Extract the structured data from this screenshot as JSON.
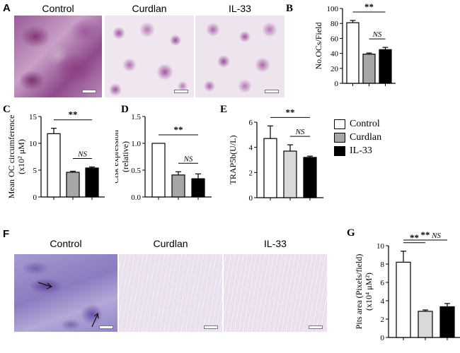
{
  "panels": {
    "A": {
      "letter": "A",
      "images": [
        "Control",
        "Curdlan",
        "IL-33"
      ]
    },
    "F": {
      "letter": "F",
      "images": [
        "Control",
        "Curdlan",
        "IL-33"
      ]
    }
  },
  "legend": {
    "items": [
      {
        "label": "Control",
        "color": "#ffffff"
      },
      {
        "label": "Curdlan",
        "color": "#a6a6a6"
      },
      {
        "label": "IL-33",
        "color": "#000000"
      }
    ]
  },
  "chart_data": [
    {
      "id": "B",
      "letter": "B",
      "type": "bar",
      "categories": [
        "Control",
        "Curdlan",
        "IL-33"
      ],
      "values": [
        81,
        39,
        45
      ],
      "errors": [
        3,
        1.5,
        3
      ],
      "colors": [
        "#ffffff",
        "#a6a6a6",
        "#000000"
      ],
      "ylabel": "No.OCs/Field",
      "ylim": [
        0,
        100
      ],
      "yticks": [
        "0",
        "20",
        "40",
        "60",
        "80",
        "100"
      ],
      "annotations": [
        {
          "from": 0,
          "to": 2,
          "text": "**"
        },
        {
          "from": 1,
          "to": 2,
          "text": "NS"
        }
      ]
    },
    {
      "id": "C",
      "letter": "C",
      "type": "bar",
      "categories": [
        "Control",
        "Curdlan",
        "IL-33"
      ],
      "values": [
        11.8,
        4.6,
        5.4
      ],
      "errors": [
        1.0,
        0.2,
        0.2
      ],
      "colors": [
        "#ffffff",
        "#a6a6a6",
        "#000000"
      ],
      "ylabel": "Mean OC circumference",
      "ylabel2": "(x10² μM)",
      "ylim": [
        0,
        15
      ],
      "yticks": [
        "0",
        "5",
        "10",
        "15"
      ],
      "annotations": [
        {
          "from": 0,
          "to": 2,
          "text": "**"
        },
        {
          "from": 1,
          "to": 2,
          "text": "NS"
        }
      ]
    },
    {
      "id": "D",
      "letter": "D",
      "type": "bar",
      "categories": [
        "Control",
        "Curdlan",
        "IL-33"
      ],
      "values": [
        1.0,
        0.41,
        0.34
      ],
      "errors": [
        0,
        0.06,
        0.09
      ],
      "colors": [
        "#ffffff",
        "#a6a6a6",
        "#000000"
      ],
      "ylabel_italic": "Ctsk",
      "ylabel": "expression",
      "ylabel2": "(relative)",
      "ylim": [
        0,
        1.5
      ],
      "yticks": [
        "0.0",
        "0.5",
        "1.0",
        "1.5"
      ],
      "annotations": [
        {
          "from": 0,
          "to": 2,
          "text": "**"
        },
        {
          "from": 1,
          "to": 2,
          "text": "NS"
        }
      ]
    },
    {
      "id": "E",
      "letter": "E",
      "type": "bar",
      "categories": [
        "Control",
        "Curdlan",
        "IL-33"
      ],
      "values": [
        4.7,
        3.7,
        3.2
      ],
      "errors": [
        1.0,
        0.5,
        0.1
      ],
      "colors": [
        "#ffffff",
        "#d9d9d9",
        "#000000"
      ],
      "ylabel": "TRAP5b(U/L)",
      "ylim": [
        0,
        6
      ],
      "yticks": [
        "0",
        "2",
        "4",
        "6"
      ],
      "annotations": [
        {
          "from": 0,
          "to": 2,
          "text": "**"
        },
        {
          "from": 1,
          "to": 2,
          "text": "NS"
        }
      ]
    },
    {
      "id": "G",
      "letter": "G",
      "type": "bar",
      "categories": [
        "Control",
        "Curdlan",
        "IL-33"
      ],
      "values": [
        8.2,
        2.85,
        3.35
      ],
      "errors": [
        1.2,
        0.15,
        0.35
      ],
      "colors": [
        "#ffffff",
        "#d9d9d9",
        "#000000"
      ],
      "ylabel": "Pits area (Pixels/field)",
      "ylabel2": "(x10⁴ μM²)",
      "ylim": [
        0,
        10
      ],
      "yticks": [
        "0",
        "2",
        "4",
        "6",
        "8",
        "10"
      ],
      "annotations": [
        {
          "from": 0,
          "to": 1,
          "text": "**"
        },
        {
          "from": 0,
          "to": 2,
          "text": "**"
        },
        {
          "from": 1,
          "to": 2,
          "text": "NS"
        }
      ]
    }
  ]
}
